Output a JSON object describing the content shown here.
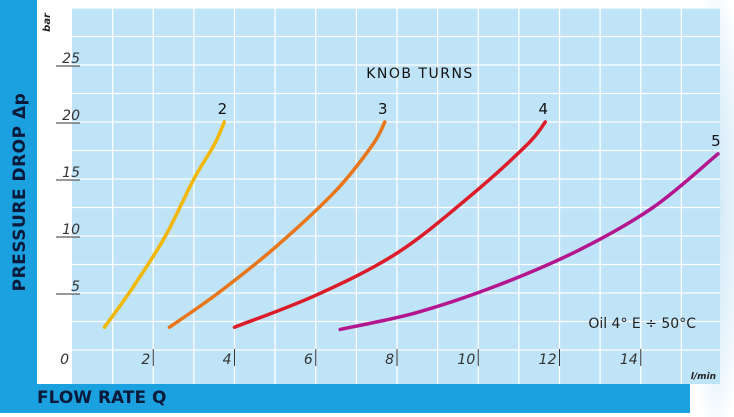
{
  "chart_data": {
    "type": "line",
    "ylabel": "PRESSURE DROP Δp",
    "xlabel": "FLOW RATE Q",
    "y_unit": "bar",
    "x_unit": "l/min",
    "legend_title": "KNOB TURNS",
    "annotation": "Oil 4° E ÷ 50°C",
    "xlim": [
      0,
      16
    ],
    "ylim": [
      0,
      30
    ],
    "x_ticks": [
      0,
      2,
      4,
      6,
      8,
      10,
      12,
      14
    ],
    "y_ticks": [
      5,
      10,
      15,
      20,
      25
    ],
    "grid": true,
    "series": [
      {
        "name": "2",
        "color": "#f2b705",
        "x": [
          0.8,
          1.5,
          2.3,
          3.0,
          3.5,
          3.75
        ],
        "y": [
          2,
          5.5,
          10,
          15,
          18,
          20
        ]
      },
      {
        "name": "3",
        "color": "#e8761b",
        "x": [
          2.4,
          3.6,
          5.0,
          6.5,
          7.4,
          7.7
        ],
        "y": [
          2,
          5,
          9,
          14,
          18,
          20
        ]
      },
      {
        "name": "4",
        "color": "#dd1c2a",
        "x": [
          4.0,
          6.0,
          8.0,
          9.8,
          11.2,
          11.65
        ],
        "y": [
          2,
          4.8,
          8.5,
          13.5,
          18,
          20
        ]
      },
      {
        "name": "5",
        "color": "#b3168f",
        "x": [
          6.6,
          8.5,
          10.5,
          12.5,
          14.3,
          15.9
        ],
        "y": [
          1.8,
          3.3,
          5.7,
          8.8,
          12.5,
          17.2
        ]
      }
    ]
  }
}
